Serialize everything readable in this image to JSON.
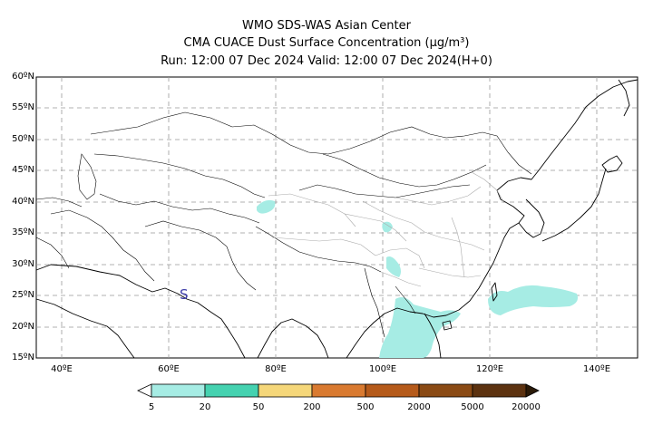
{
  "header": {
    "line1": "WMO SDS-WAS Asian Center",
    "line2": "CMA CUACE Dust Surface Concentration (μg/m³)",
    "line3": "Run: 12:00 07 Dec 2024    Valid: 12:00 07 Dec 2024(H+0)"
  },
  "axes": {
    "lat_labels": [
      "60ºN",
      "55ºN",
      "50ºN",
      "45ºN",
      "40ºN",
      "35ºN",
      "30ºN",
      "25ºN",
      "20ºN",
      "15ºN"
    ],
    "lon_labels": [
      "40ºE",
      "60ºE",
      "80ºE",
      "100ºE",
      "120ºE",
      "140ºE"
    ]
  },
  "map": {
    "marker_symbol": "S",
    "marker_color": "#3a3aa8"
  },
  "colorbar": {
    "labels": [
      "5",
      "20",
      "50",
      "200",
      "500",
      "2000",
      "5000",
      "20000"
    ],
    "colors": [
      "#a6ece4",
      "#45d2b0",
      "#f5d77a",
      "#d97a30",
      "#b55a1a",
      "#8a4a14",
      "#5c3210",
      "#2a1a08"
    ]
  },
  "colors": {
    "dust_low": "#a6ece4",
    "grid": "#999999"
  }
}
